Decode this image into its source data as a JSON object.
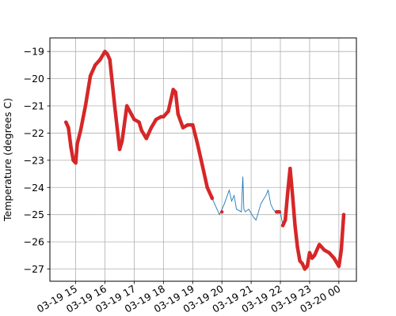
{
  "chart_data": {
    "type": "line",
    "title": "",
    "xlabel": "",
    "ylabel": "Temperature (degrees C)",
    "grid": true,
    "xlim": [
      "03-19 14:07",
      "03-20 00:36"
    ],
    "ylim": [
      -27.45,
      -18.5
    ],
    "x_ticks": [
      "03-19 15",
      "03-19 16",
      "03-19 17",
      "03-19 18",
      "03-19 19",
      "03-19 20",
      "03-19 21",
      "03-19 22",
      "03-19 23",
      "03-20 00"
    ],
    "y_ticks": [
      -19,
      -20,
      -21,
      -22,
      -23,
      -24,
      -25,
      -26,
      -27
    ],
    "colors": {
      "raw_series": "#1f77b4",
      "marker_series": "#d62728",
      "grid": "#b0b0b0",
      "axes": "#000000"
    },
    "series": [
      {
        "style": "thin line",
        "x": [
          "03-19 14:40",
          "03-19 14:45",
          "03-19 14:50",
          "03-19 14:55",
          "03-19 15:00",
          "03-19 15:03",
          "03-19 15:10",
          "03-19 15:20",
          "03-19 15:30",
          "03-19 15:40",
          "03-19 15:50",
          "03-19 16:00",
          "03-19 16:05",
          "03-19 16:10",
          "03-19 16:20",
          "03-19 16:30",
          "03-19 16:35",
          "03-19 16:45",
          "03-19 17:00",
          "03-19 17:10",
          "03-19 17:15",
          "03-19 17:25",
          "03-19 17:35",
          "03-19 17:45",
          "03-19 17:55",
          "03-19 18:00",
          "03-19 18:10",
          "03-19 18:20",
          "03-19 18:25",
          "03-19 18:30",
          "03-19 18:40",
          "03-19 18:50",
          "03-19 19:00",
          "03-19 19:10",
          "03-19 19:20",
          "03-19 19:30",
          "03-19 19:40",
          "03-19 19:50",
          "03-19 19:55",
          "03-19 20:05",
          "03-19 20:15",
          "03-19 20:20",
          "03-19 20:25",
          "03-19 20:30",
          "03-19 20:40",
          "03-19 20:43",
          "03-19 20:45",
          "03-19 20:48",
          "03-19 20:55",
          "03-19 21:05",
          "03-19 21:10",
          "03-19 21:20",
          "03-19 21:30",
          "03-19 21:35",
          "03-19 21:40",
          "03-19 21:45",
          "03-19 21:50",
          "03-19 22:00",
          "03-19 22:05",
          "03-19 22:10",
          "03-19 22:15",
          "03-19 22:20",
          "03-19 22:25",
          "03-19 22:30",
          "03-19 22:35",
          "03-19 22:40",
          "03-19 22:45",
          "03-19 22:50",
          "03-19 22:55",
          "03-19 23:00",
          "03-19 23:05",
          "03-19 23:10",
          "03-19 23:20",
          "03-19 23:30",
          "03-19 23:40",
          "03-19 23:50",
          "03-20 00:00",
          "03-20 00:05",
          "03-20 00:10"
        ],
        "y": [
          -21.6,
          -21.8,
          -22.5,
          -23.0,
          -23.1,
          -22.4,
          -21.9,
          -21.0,
          -19.9,
          -19.5,
          -19.3,
          -19.0,
          -19.1,
          -19.3,
          -21.0,
          -22.6,
          -22.3,
          -21.0,
          -21.5,
          -21.6,
          -21.9,
          -22.2,
          -21.8,
          -21.5,
          -21.4,
          -21.4,
          -21.2,
          -20.4,
          -20.5,
          -21.3,
          -21.8,
          -21.7,
          -21.7,
          -22.4,
          -23.2,
          -24.0,
          -24.4,
          -24.8,
          -25.0,
          -24.6,
          -24.1,
          -24.5,
          -24.3,
          -24.8,
          -24.9,
          -23.6,
          -24.8,
          -24.9,
          -24.8,
          -25.1,
          -25.2,
          -24.6,
          -24.3,
          -24.1,
          -24.6,
          -24.8,
          -24.9,
          -24.9,
          -25.4,
          -25.2,
          -24.2,
          -23.3,
          -24.3,
          -25.4,
          -26.2,
          -26.7,
          -26.8,
          -27.0,
          -26.9,
          -26.4,
          -26.6,
          -26.5,
          -26.1,
          -26.3,
          -26.4,
          -26.6,
          -26.9,
          -26.3,
          -25.0
        ]
      },
      {
        "style": "dense markers",
        "segments": [
          {
            "x": [
              "03-19 14:40",
              "03-19 14:45",
              "03-19 14:50",
              "03-19 14:55",
              "03-19 15:00",
              "03-19 15:03",
              "03-19 15:10",
              "03-19 15:20",
              "03-19 15:30",
              "03-19 15:40",
              "03-19 15:50",
              "03-19 16:00",
              "03-19 16:05",
              "03-19 16:10",
              "03-19 16:20",
              "03-19 16:30",
              "03-19 16:35",
              "03-19 16:45",
              "03-19 17:00",
              "03-19 17:10",
              "03-19 17:15",
              "03-19 17:25",
              "03-19 17:35",
              "03-19 17:45",
              "03-19 17:55",
              "03-19 18:00",
              "03-19 18:10",
              "03-19 18:20",
              "03-19 18:25",
              "03-19 18:30",
              "03-19 18:40",
              "03-19 18:50",
              "03-19 19:00",
              "03-19 19:10",
              "03-19 19:20",
              "03-19 19:30",
              "03-19 19:40"
            ],
            "y": [
              -21.6,
              -21.8,
              -22.5,
              -23.0,
              -23.1,
              -22.4,
              -21.9,
              -21.0,
              -19.9,
              -19.5,
              -19.3,
              -19.0,
              -19.1,
              -19.3,
              -21.0,
              -22.6,
              -22.3,
              -21.0,
              -21.5,
              -21.6,
              -21.9,
              -22.2,
              -21.8,
              -21.5,
              -21.4,
              -21.4,
              -21.2,
              -20.4,
              -20.5,
              -21.3,
              -21.8,
              -21.7,
              -21.7,
              -22.4,
              -23.2,
              -24.0,
              -24.4
            ]
          },
          {
            "x": [
              "03-19 20:00"
            ],
            "y": [
              -24.9
            ]
          },
          {
            "x": [
              "03-19 21:52",
              "03-19 21:58"
            ],
            "y": [
              -24.9,
              -24.9
            ]
          },
          {
            "x": [
              "03-19 22:05",
              "03-19 22:10",
              "03-19 22:15",
              "03-19 22:20",
              "03-19 22:25",
              "03-19 22:30",
              "03-19 22:35",
              "03-19 22:40",
              "03-19 22:45",
              "03-19 22:50",
              "03-19 22:55",
              "03-19 23:00",
              "03-19 23:05",
              "03-19 23:10",
              "03-19 23:20",
              "03-19 23:30",
              "03-19 23:40",
              "03-19 23:50",
              "03-20 00:00",
              "03-20 00:05",
              "03-20 00:10"
            ],
            "y": [
              -25.4,
              -25.2,
              -24.2,
              -23.3,
              -24.3,
              -25.4,
              -26.2,
              -26.7,
              -26.8,
              -27.0,
              -26.9,
              -26.4,
              -26.6,
              -26.5,
              -26.1,
              -26.3,
              -26.4,
              -26.6,
              -26.9,
              -26.3,
              -25.0
            ]
          }
        ]
      }
    ]
  }
}
